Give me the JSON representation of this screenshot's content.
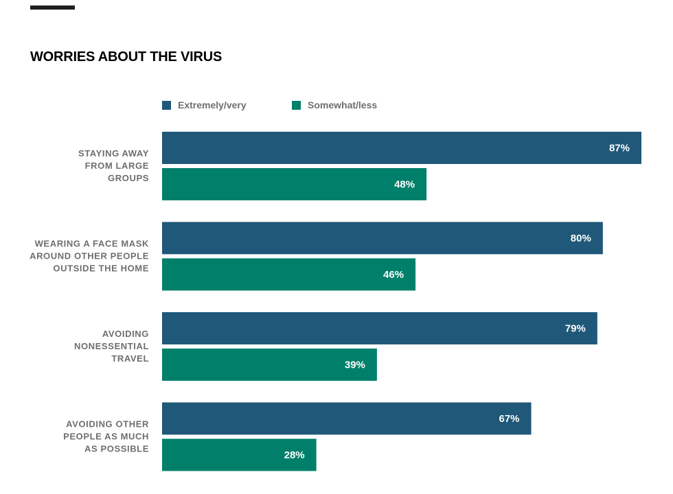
{
  "title": "WORRIES ABOUT THE VIRUS",
  "colors": {
    "extremely_very": "#1f5879",
    "somewhat_less": "#00806a"
  },
  "chart_data": {
    "type": "bar",
    "orientation": "horizontal",
    "title": "WORRIES ABOUT THE VIRUS",
    "categories": [
      "STAYING AWAY FROM LARGE GROUPS",
      "WEARING A FACE MASK AROUND OTHER PEOPLE OUTSIDE THE HOME",
      "AVOIDING NONESSENTIAL TRAVEL",
      "AVOIDING OTHER PEOPLE AS MUCH AS POSSIBLE"
    ],
    "category_lines": [
      [
        "STAYING AWAY",
        "FROM LARGE",
        "GROUPS"
      ],
      [
        "WEARING A FACE MASK",
        "AROUND OTHER PEOPLE",
        "OUTSIDE THE HOME"
      ],
      [
        "AVOIDING",
        "NONESSENTIAL",
        "TRAVEL"
      ],
      [
        "AVOIDING OTHER",
        "PEOPLE AS MUCH",
        "AS POSSIBLE"
      ]
    ],
    "series": [
      {
        "name": "Extremely/very",
        "values": [
          87,
          80,
          79,
          67
        ],
        "color": "#1f5879"
      },
      {
        "name": "Somewhat/less",
        "values": [
          48,
          46,
          39,
          28
        ],
        "color": "#00806a"
      }
    ],
    "value_suffix": "%",
    "xlim": [
      0,
      87
    ],
    "grid": false,
    "legend_position": "top-left"
  }
}
